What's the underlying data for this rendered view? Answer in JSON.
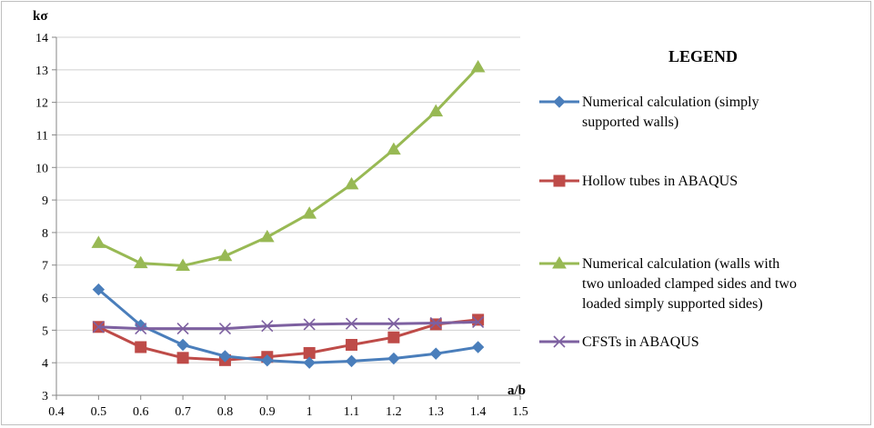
{
  "chart_data": {
    "type": "line",
    "title": "",
    "xlabel": "a/b",
    "ylabel": "kσ",
    "xlim": [
      0.4,
      1.5
    ],
    "ylim": [
      3,
      14
    ],
    "xticks": [
      "0.4",
      "0.5",
      "0.6",
      "0.7",
      "0.8",
      "0.9",
      "1",
      "1.1",
      "1.2",
      "1.3",
      "1.4",
      "1.5"
    ],
    "yticks": [
      "3",
      "4",
      "5",
      "6",
      "7",
      "8",
      "9",
      "10",
      "11",
      "12",
      "13",
      "14"
    ],
    "grid": "horizontal",
    "legend_title": "LEGEND",
    "legend_position": "right",
    "x": [
      0.5,
      0.6,
      0.7,
      0.8,
      0.9,
      1.0,
      1.1,
      1.2,
      1.3,
      1.4
    ],
    "series": [
      {
        "name_lines": [
          "Numerical calculation (simply",
          "supported walls)"
        ],
        "marker": "diamond",
        "color": "#4a7ebb",
        "values": [
          6.25,
          5.15,
          4.55,
          4.2,
          4.07,
          4.0,
          4.05,
          4.13,
          4.28,
          4.48
        ]
      },
      {
        "name_lines": [
          "Hollow tubes in  ABAQUS"
        ],
        "marker": "square",
        "color": "#be4b48",
        "values": [
          5.1,
          4.48,
          4.15,
          4.08,
          4.18,
          4.3,
          4.55,
          4.78,
          5.18,
          5.32
        ]
      },
      {
        "name_lines": [
          "Numerical calculation (walls with",
          "two unloaded clamped sides and two",
          "loaded simply supported sides)"
        ],
        "marker": "triangle",
        "color": "#98b954",
        "values": [
          7.68,
          7.06,
          6.98,
          7.28,
          7.86,
          8.58,
          9.48,
          10.55,
          11.72,
          13.08
        ]
      },
      {
        "name_lines": [
          "CFSTs in ABAQUS"
        ],
        "marker": "x",
        "color": "#7d60a0",
        "values": [
          5.1,
          5.05,
          5.05,
          5.05,
          5.13,
          5.18,
          5.2,
          5.2,
          5.22,
          5.25
        ]
      }
    ]
  }
}
